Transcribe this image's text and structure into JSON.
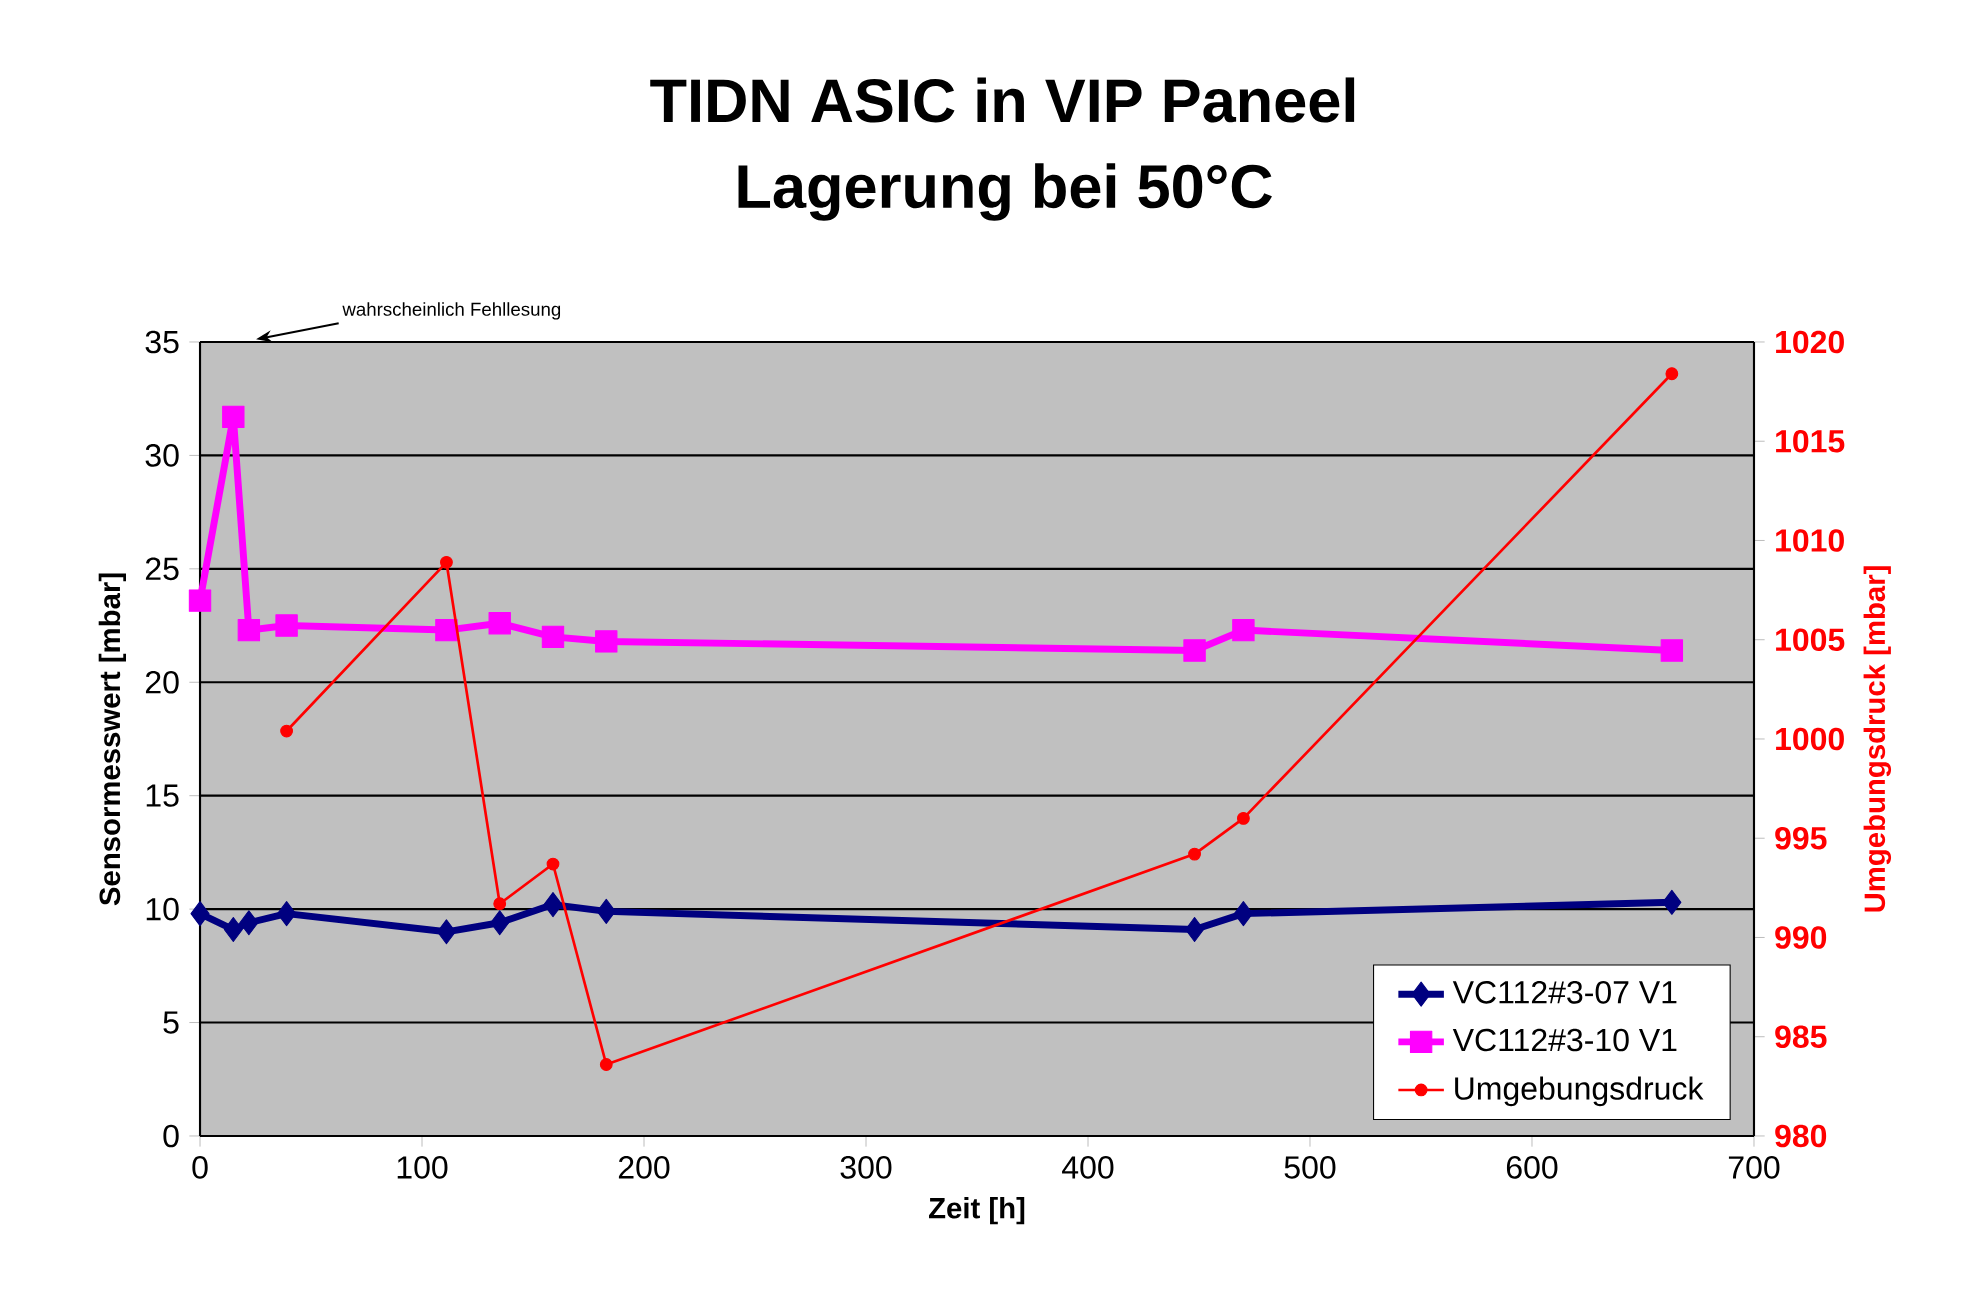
{
  "chart_data": {
    "type": "line",
    "title": "TIDN ASIC in VIP Paneel",
    "subtitle": "Lagerung bei 50°C",
    "xlabel": "Zeit [h]",
    "ylabel": "Sensormesswert [mbar]",
    "y2label": "Umgebungsdruck [mbar]",
    "annotations": [
      "wahrscheinlich Fehllesung"
    ],
    "series": [
      {
        "name": "VC112#3-07 V1",
        "color": "#000080",
        "marker": "diamond",
        "x": [
          0,
          15,
          22,
          39,
          111,
          135,
          159,
          183,
          448,
          470,
          663
        ],
        "values": [
          9.8,
          9.1,
          9.4,
          9.8,
          9.0,
          9.4,
          10.2,
          9.9,
          9.1,
          9.8,
          10.3
        ]
      },
      {
        "name": "VC112#3-10 V1",
        "color": "#ff00ff",
        "marker": "square",
        "x": [
          0,
          15,
          22,
          39,
          111,
          135,
          159,
          183,
          448,
          470,
          663
        ],
        "values": [
          23.6,
          31.7,
          22.3,
          22.5,
          22.3,
          22.6,
          22.0,
          21.8,
          21.4,
          22.3,
          21.4
        ]
      },
      {
        "name": "Umgebungsdruck",
        "color": "#ff0000",
        "marker": "circle",
        "axis": "y2",
        "x": [
          39,
          111,
          135,
          159,
          183,
          448,
          470,
          663
        ],
        "values": [
          1000.4,
          1008.9,
          991.7,
          993.7,
          983.6,
          994.2,
          996.0,
          1018.4
        ]
      }
    ],
    "xlim": [
      0,
      700
    ],
    "xticks": [
      0,
      100,
      200,
      300,
      400,
      500,
      600,
      700
    ],
    "ylim": [
      0,
      35
    ],
    "yticks": [
      0,
      5,
      10,
      15,
      20,
      25,
      30,
      35
    ],
    "y2lim": [
      980,
      1020
    ],
    "y2ticks": [
      980,
      985,
      990,
      995,
      1000,
      1005,
      1010,
      1015,
      1020
    ],
    "grid": "y",
    "legend": "bottom right"
  }
}
